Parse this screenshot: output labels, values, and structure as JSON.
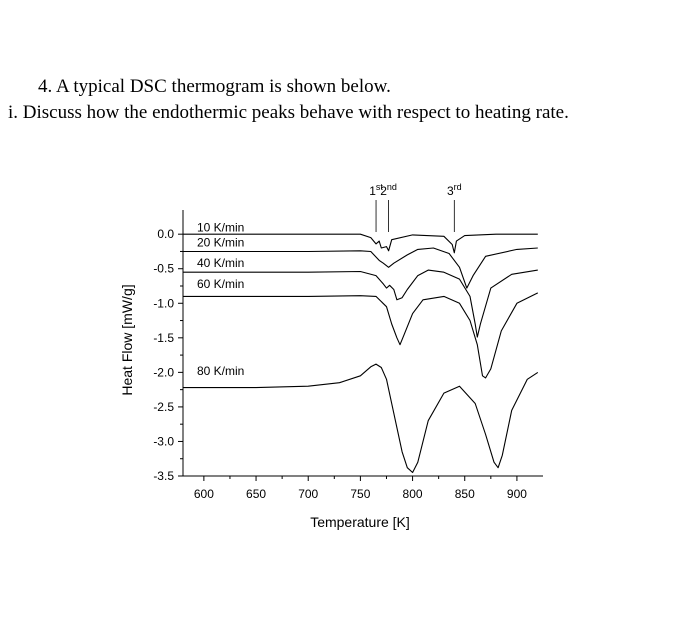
{
  "question": {
    "line1": "4.  A typical DSC thermogram is shown below.",
    "line2": "i.   Discuss how the endothermic peaks behave with respect to heating rate."
  },
  "chart_data": {
    "type": "line",
    "title": "",
    "xlabel": "Temperature [K]",
    "ylabel": "Heat Flow [mW/g]",
    "xlim": [
      580,
      925
    ],
    "ylim": [
      -3.5,
      0.35
    ],
    "xticks": [
      600,
      650,
      700,
      750,
      800,
      850,
      900
    ],
    "yticks": [
      0.0,
      -0.5,
      -1.0,
      -1.5,
      -2.0,
      -2.5,
      -3.0,
      -3.5
    ],
    "ytick_labels": [
      "0.0",
      "-0.5",
      "-1.0",
      "-1.5",
      "-2.0",
      "-2.5",
      "-3.0",
      "-3.5"
    ],
    "line_color": "#000000",
    "peak_labels": [
      {
        "base": "1",
        "sup": "st",
        "x": 765
      },
      {
        "base": "2",
        "sup": "nd",
        "x": 777
      },
      {
        "base": "3",
        "sup": "rd",
        "x": 840
      }
    ],
    "series": [
      {
        "name": "10 K/min",
        "label_y": 0.1,
        "x": [
          580,
          700,
          750,
          760,
          765,
          768,
          770,
          775,
          777,
          780,
          800,
          830,
          838,
          840,
          842,
          850,
          880,
          920
        ],
        "y": [
          0.0,
          0.0,
          0.0,
          -0.05,
          -0.14,
          -0.1,
          -0.2,
          -0.18,
          -0.24,
          -0.08,
          -0.01,
          -0.03,
          -0.15,
          -0.27,
          -0.1,
          -0.02,
          0.0,
          0.0
        ]
      },
      {
        "name": "20 K/min",
        "label_y": -0.12,
        "x": [
          580,
          700,
          750,
          760,
          768,
          772,
          777,
          782,
          795,
          805,
          820,
          835,
          845,
          852,
          858,
          870,
          900,
          920
        ],
        "y": [
          -0.25,
          -0.25,
          -0.24,
          -0.25,
          -0.38,
          -0.42,
          -0.48,
          -0.42,
          -0.3,
          -0.22,
          -0.2,
          -0.28,
          -0.48,
          -0.78,
          -0.6,
          -0.32,
          -0.22,
          -0.2
        ]
      },
      {
        "name": "40 K/min",
        "label_y": -0.42,
        "x": [
          580,
          700,
          750,
          765,
          772,
          775,
          778,
          782,
          785,
          790,
          795,
          805,
          815,
          830,
          845,
          855,
          860,
          862,
          865,
          875,
          895,
          920
        ],
        "y": [
          -0.55,
          -0.55,
          -0.54,
          -0.6,
          -0.72,
          -0.78,
          -0.74,
          -0.8,
          -0.95,
          -0.92,
          -0.8,
          -0.6,
          -0.52,
          -0.55,
          -0.65,
          -0.9,
          -1.3,
          -1.49,
          -1.3,
          -0.78,
          -0.58,
          -0.52
        ]
      },
      {
        "name": "60 K/min",
        "label_y": -0.72,
        "x": [
          580,
          700,
          750,
          765,
          775,
          780,
          785,
          788,
          792,
          800,
          810,
          830,
          845,
          855,
          862,
          867,
          870,
          875,
          885,
          900,
          920
        ],
        "y": [
          -0.9,
          -0.9,
          -0.89,
          -0.9,
          -1.05,
          -1.3,
          -1.5,
          -1.6,
          -1.45,
          -1.15,
          -0.95,
          -0.9,
          -1.0,
          -1.25,
          -1.6,
          -2.05,
          -2.08,
          -1.95,
          -1.4,
          -1.0,
          -0.85
        ]
      },
      {
        "name": "80 K/min",
        "label_y": -1.98,
        "x": [
          580,
          600,
          650,
          700,
          730,
          750,
          760,
          765,
          770,
          775,
          780,
          785,
          790,
          795,
          800,
          805,
          815,
          830,
          845,
          860,
          870,
          878,
          882,
          886,
          895,
          910,
          920
        ],
        "y": [
          -2.22,
          -2.22,
          -2.22,
          -2.2,
          -2.15,
          -2.05,
          -1.92,
          -1.88,
          -1.93,
          -2.1,
          -2.45,
          -2.8,
          -3.15,
          -3.38,
          -3.45,
          -3.3,
          -2.7,
          -2.3,
          -2.2,
          -2.45,
          -2.9,
          -3.3,
          -3.38,
          -3.2,
          -2.55,
          -2.1,
          -2.0
        ]
      }
    ]
  }
}
